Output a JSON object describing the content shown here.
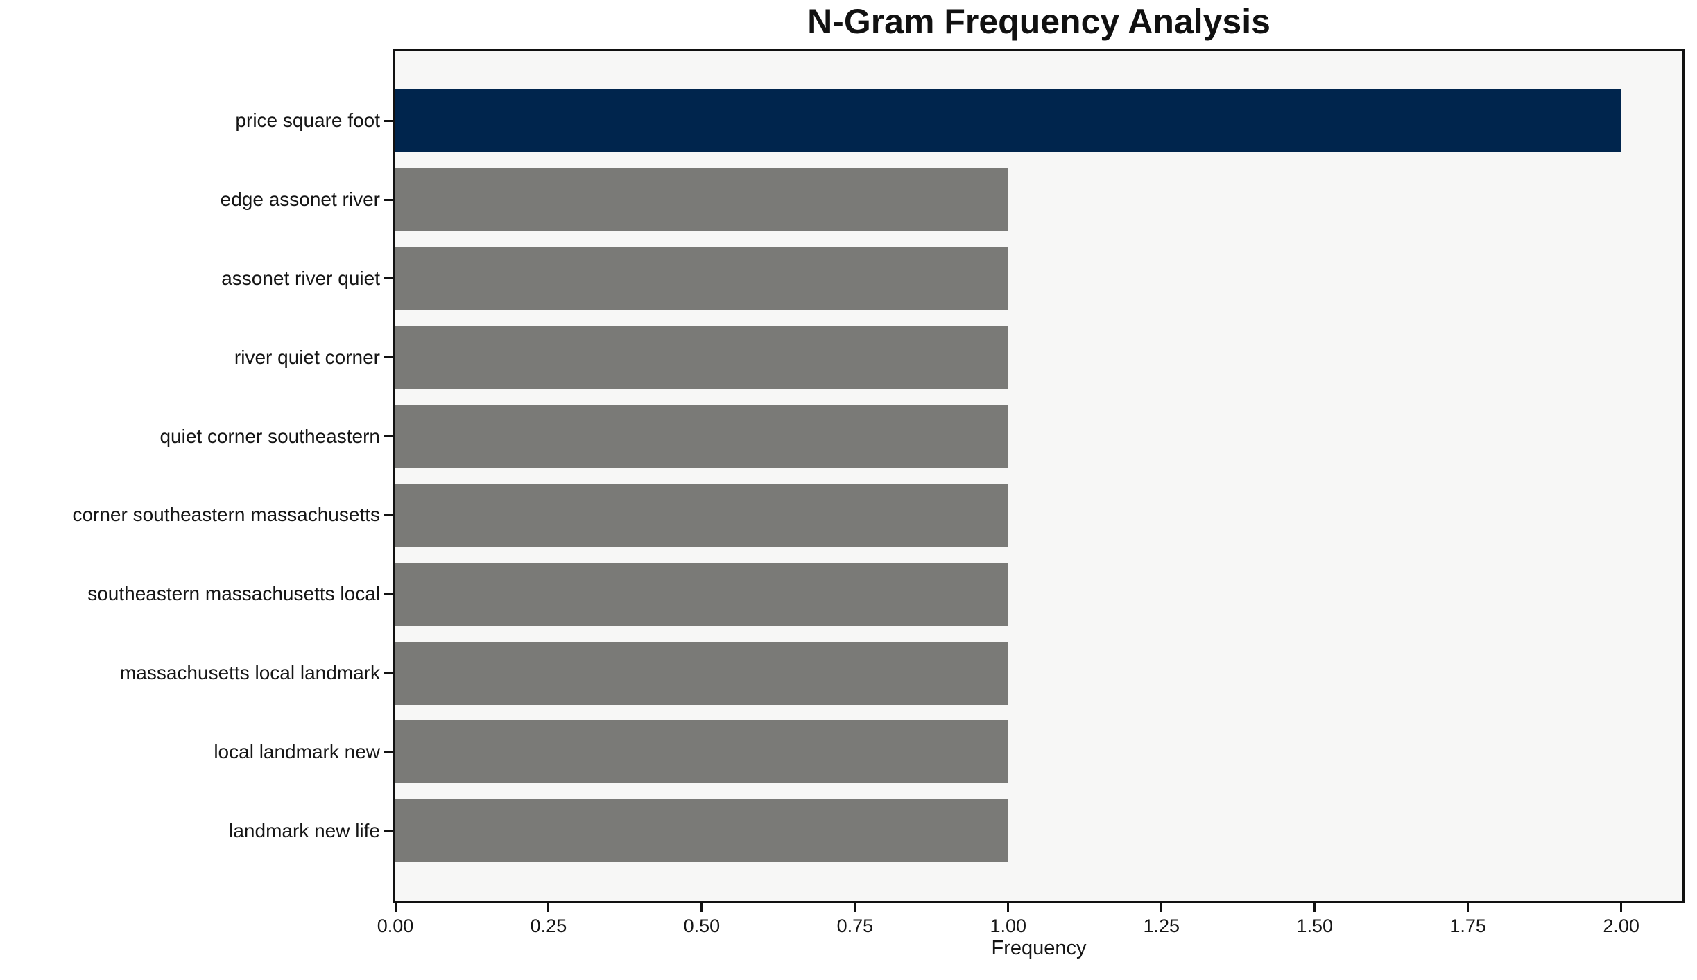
{
  "chart_data": {
    "type": "bar",
    "orientation": "horizontal",
    "title": "N-Gram Frequency Analysis",
    "xlabel": "Frequency",
    "ylabel": "",
    "categories": [
      "price square foot",
      "edge assonet river",
      "assonet river quiet",
      "river quiet corner",
      "quiet corner southeastern",
      "corner southeastern massachusetts",
      "southeastern massachusetts local",
      "massachusetts local landmark",
      "local landmark new",
      "landmark new life"
    ],
    "values": [
      2,
      1,
      1,
      1,
      1,
      1,
      1,
      1,
      1,
      1
    ],
    "bar_colors": [
      "#00254D",
      "#7A7A77",
      "#7A7A77",
      "#7A7A77",
      "#7A7A77",
      "#7A7A77",
      "#7A7A77",
      "#7A7A77",
      "#7A7A77",
      "#7A7A77"
    ],
    "xlim": [
      0,
      2.1
    ],
    "xticks": {
      "values": [
        0,
        0.25,
        0.5,
        0.75,
        1.0,
        1.25,
        1.5,
        1.75,
        2.0
      ],
      "labels": [
        "0.00",
        "0.25",
        "0.50",
        "0.75",
        "1.00",
        "1.25",
        "1.50",
        "1.75",
        "2.00"
      ]
    },
    "grid": false,
    "legend": null,
    "plot_background": "#F7F7F6",
    "axis_color": "#111111",
    "highlight_color": "#00254D",
    "default_bar_color": "#7A7A77"
  }
}
